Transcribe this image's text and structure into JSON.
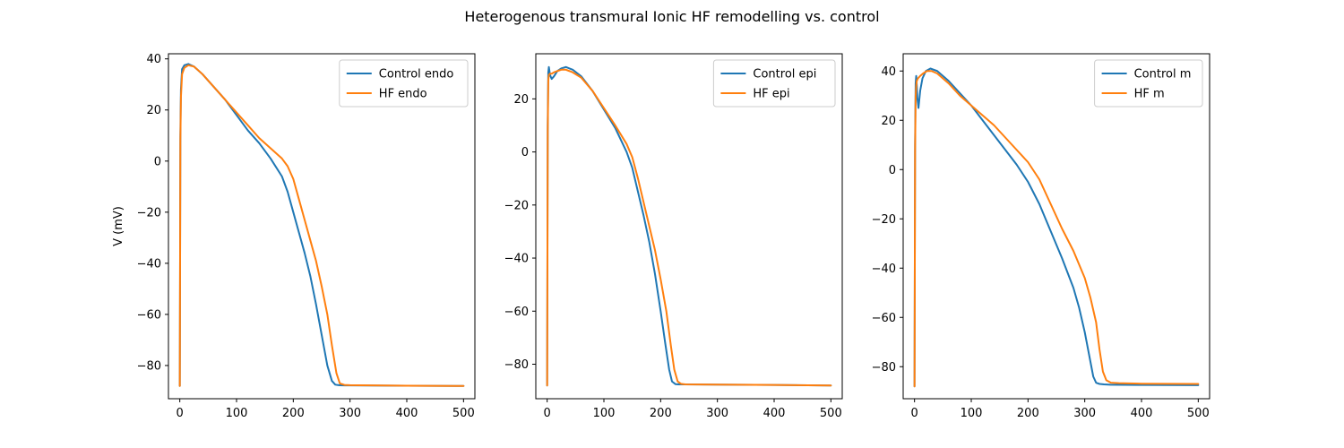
{
  "figure": {
    "title": "Heterogenous transmural Ionic HF remodelling vs. control"
  },
  "chart_data": [
    {
      "type": "line",
      "ylabel": "V (mV)",
      "xlabel": "",
      "xlim": [
        -20,
        520
      ],
      "ylim": [
        -93,
        42
      ],
      "xticks": [
        0,
        100,
        200,
        300,
        400,
        500
      ],
      "yticks": [
        -80,
        -60,
        -40,
        -20,
        0,
        20,
        40
      ],
      "legend_position": "top-right",
      "series": [
        {
          "name": "Control endo",
          "color": "#1f77b4",
          "x": [
            0,
            1,
            2,
            4,
            8,
            15,
            25,
            40,
            60,
            80,
            100,
            120,
            140,
            160,
            180,
            190,
            200,
            210,
            220,
            230,
            240,
            250,
            260,
            268,
            274,
            280,
            290,
            300,
            400,
            500
          ],
          "y": [
            -88,
            10,
            28,
            36,
            37.5,
            38,
            37,
            34,
            29,
            24,
            18,
            12,
            7,
            1,
            -6,
            -12,
            -20,
            -28,
            -36,
            -45,
            -56,
            -68,
            -80,
            -86,
            -87.5,
            -87.7,
            -87.8,
            -87.8,
            -87.9,
            -88
          ]
        },
        {
          "name": "HF endo",
          "color": "#ff7f0e",
          "x": [
            0,
            1,
            2,
            4,
            8,
            15,
            25,
            40,
            60,
            80,
            100,
            120,
            140,
            160,
            180,
            190,
            200,
            210,
            220,
            230,
            240,
            250,
            260,
            268,
            276,
            282,
            290,
            300,
            400,
            500
          ],
          "y": [
            -88,
            8,
            25,
            34,
            36.5,
            37.5,
            37,
            34,
            29,
            24,
            19,
            14,
            9,
            5,
            1,
            -2,
            -7,
            -15,
            -23,
            -31,
            -39,
            -49,
            -60,
            -72,
            -83,
            -87,
            -87.6,
            -87.7,
            -87.9,
            -88
          ]
        }
      ]
    },
    {
      "type": "line",
      "ylabel": "",
      "xlabel": "",
      "xlim": [
        -20,
        520
      ],
      "ylim": [
        -93,
        37
      ],
      "xticks": [
        0,
        100,
        200,
        300,
        400,
        500
      ],
      "yticks": [
        -80,
        -60,
        -40,
        -20,
        0,
        20
      ],
      "legend_position": "top-right",
      "series": [
        {
          "name": "Control epi",
          "color": "#1f77b4",
          "x": [
            0,
            1,
            2,
            3,
            5,
            8,
            12,
            18,
            25,
            33,
            45,
            60,
            80,
            100,
            120,
            140,
            150,
            160,
            170,
            180,
            190,
            200,
            208,
            215,
            220,
            226,
            232,
            240,
            300,
            400,
            500
          ],
          "y": [
            -88,
            10,
            30,
            32,
            29,
            27.5,
            28.5,
            30.5,
            31.5,
            32,
            31,
            28.5,
            23,
            16,
            9,
            0,
            -6,
            -15,
            -24,
            -34,
            -46,
            -60,
            -72,
            -82,
            -86.5,
            -87.5,
            -87.6,
            -87.6,
            -87.7,
            -87.8,
            -88
          ]
        },
        {
          "name": "HF epi",
          "color": "#ff7f0e",
          "x": [
            0,
            1,
            2,
            3,
            5,
            8,
            12,
            18,
            25,
            33,
            45,
            60,
            80,
            100,
            120,
            140,
            150,
            160,
            170,
            180,
            190,
            200,
            210,
            218,
            224,
            230,
            236,
            244,
            300,
            400,
            500
          ],
          "y": [
            -88,
            8,
            27,
            29,
            29.5,
            29.5,
            30,
            30.5,
            31,
            31,
            30,
            28,
            23,
            16.5,
            10,
            3,
            -2,
            -10,
            -19,
            -28,
            -37,
            -48,
            -60,
            -73,
            -82,
            -86.5,
            -87.4,
            -87.6,
            -87.7,
            -87.8,
            -88
          ]
        }
      ]
    },
    {
      "type": "line",
      "ylabel": "",
      "xlabel": "",
      "xlim": [
        -20,
        520
      ],
      "ylim": [
        -93,
        47
      ],
      "xticks": [
        0,
        100,
        200,
        300,
        400,
        500
      ],
      "yticks": [
        -80,
        -60,
        -40,
        -20,
        0,
        20,
        40
      ],
      "legend_position": "top-right",
      "series": [
        {
          "name": "Control m",
          "color": "#1f77b4",
          "x": [
            0,
            1,
            2,
            3,
            4,
            5,
            7,
            10,
            14,
            20,
            28,
            40,
            60,
            80,
            100,
            120,
            140,
            160,
            180,
            200,
            220,
            240,
            260,
            280,
            290,
            300,
            310,
            315,
            320,
            326,
            334,
            345,
            400,
            500
          ],
          "y": [
            -88,
            10,
            35,
            38,
            34,
            29,
            25,
            32,
            37,
            40,
            41,
            40,
            36,
            31,
            26,
            20,
            14,
            8,
            2,
            -5,
            -14,
            -25,
            -36,
            -48,
            -56,
            -66,
            -78,
            -84,
            -86.5,
            -87,
            -87.2,
            -87.3,
            -87.4,
            -87.5
          ]
        },
        {
          "name": "HF m",
          "color": "#ff7f0e",
          "x": [
            0,
            1,
            2,
            3,
            4,
            6,
            10,
            15,
            22,
            30,
            40,
            60,
            80,
            100,
            120,
            140,
            160,
            180,
            200,
            220,
            240,
            260,
            280,
            300,
            310,
            320,
            326,
            332,
            338,
            346,
            360,
            400,
            500
          ],
          "y": [
            -88,
            8,
            30,
            34,
            36,
            37,
            38,
            39,
            40,
            40,
            39,
            35,
            30,
            26,
            22,
            18,
            13,
            8,
            3,
            -4,
            -14,
            -24,
            -33,
            -44,
            -52,
            -62,
            -73,
            -82,
            -85.5,
            -86.5,
            -86.7,
            -86.9,
            -87
          ]
        }
      ]
    }
  ]
}
